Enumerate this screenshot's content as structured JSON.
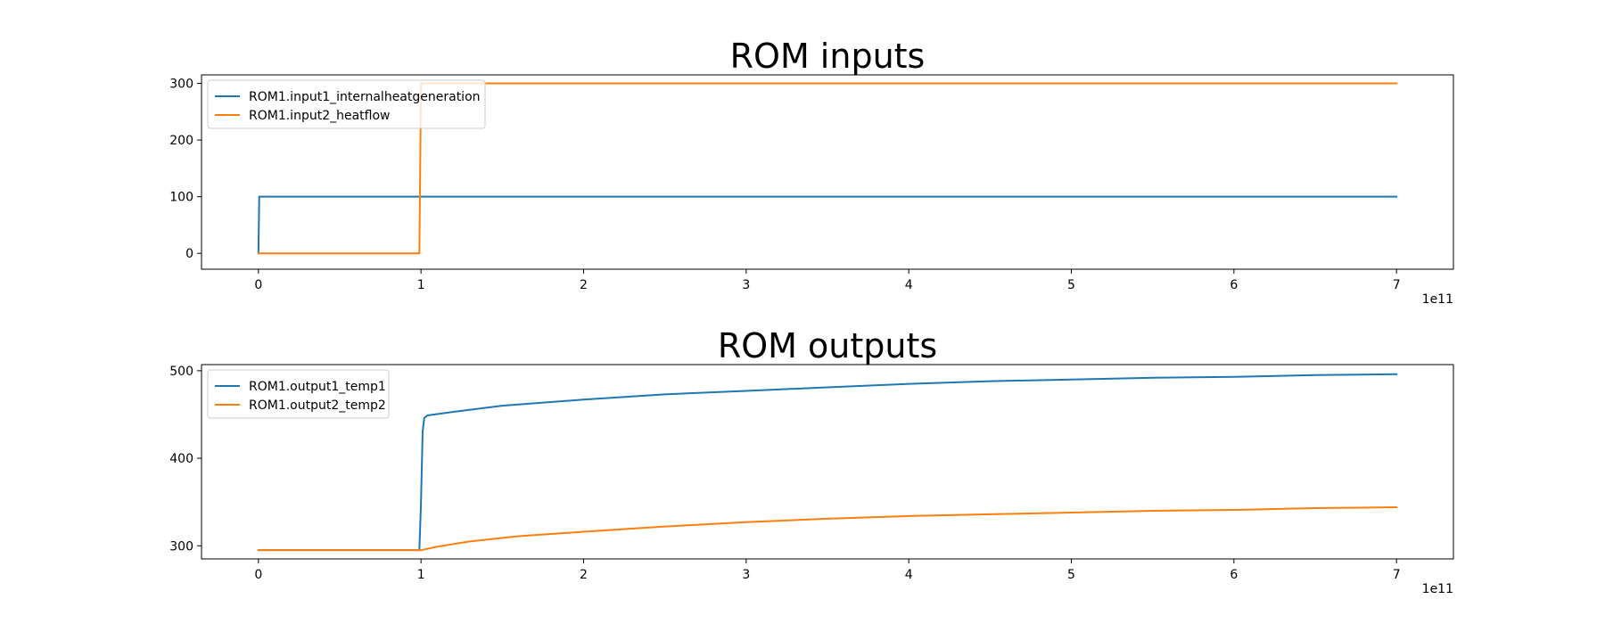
{
  "chart_data": [
    {
      "type": "line",
      "title": "ROM inputs",
      "xlabel": "",
      "ylabel": "",
      "x_offset_label": "1e11",
      "xlim": [
        -0.35,
        7.35
      ],
      "ylim": [
        -28,
        315
      ],
      "xticks": [
        0,
        1,
        2,
        3,
        4,
        5,
        6,
        7
      ],
      "yticks": [
        0,
        100,
        200,
        300
      ],
      "legend": "top-left",
      "grid": false,
      "series": [
        {
          "name": "ROM1.input1_internalheatgeneration",
          "color": "#1f77b4",
          "x": [
            0,
            0.005,
            7
          ],
          "y": [
            0,
            100,
            100
          ]
        },
        {
          "name": "ROM1.input2_heatflow",
          "color": "#ff7f0e",
          "x": [
            0,
            0.99,
            1.0,
            7
          ],
          "y": [
            0,
            0,
            300,
            300
          ]
        }
      ]
    },
    {
      "type": "line",
      "title": "ROM outputs",
      "xlabel": "",
      "ylabel": "",
      "x_offset_label": "1e11",
      "xlim": [
        -0.35,
        7.35
      ],
      "ylim": [
        285,
        507
      ],
      "xticks": [
        0,
        1,
        2,
        3,
        4,
        5,
        6,
        7
      ],
      "yticks": [
        300,
        400,
        500
      ],
      "legend": "top-left",
      "grid": false,
      "series": [
        {
          "name": "ROM1.output1_temp1",
          "color": "#1f77b4",
          "x": [
            0,
            0.99,
            1.0,
            1.01,
            1.02,
            1.04,
            1.2,
            1.5,
            2,
            2.5,
            3,
            3.5,
            4,
            4.5,
            5,
            5.5,
            6,
            6.5,
            7
          ],
          "y": [
            295,
            295,
            350,
            430,
            446,
            449,
            453,
            460,
            467,
            473,
            477,
            481,
            485,
            488,
            490,
            492,
            493,
            495,
            496
          ]
        },
        {
          "name": "ROM1.output2_temp2",
          "color": "#ff7f0e",
          "x": [
            0,
            0.99,
            1.0,
            1.1,
            1.3,
            1.6,
            2,
            2.5,
            3,
            3.5,
            4,
            4.5,
            5,
            5.5,
            6,
            6.5,
            7
          ],
          "y": [
            295,
            295,
            295,
            299,
            305,
            311,
            316,
            322,
            327,
            331,
            334,
            336,
            338,
            340,
            341,
            343,
            344
          ]
        }
      ]
    }
  ]
}
